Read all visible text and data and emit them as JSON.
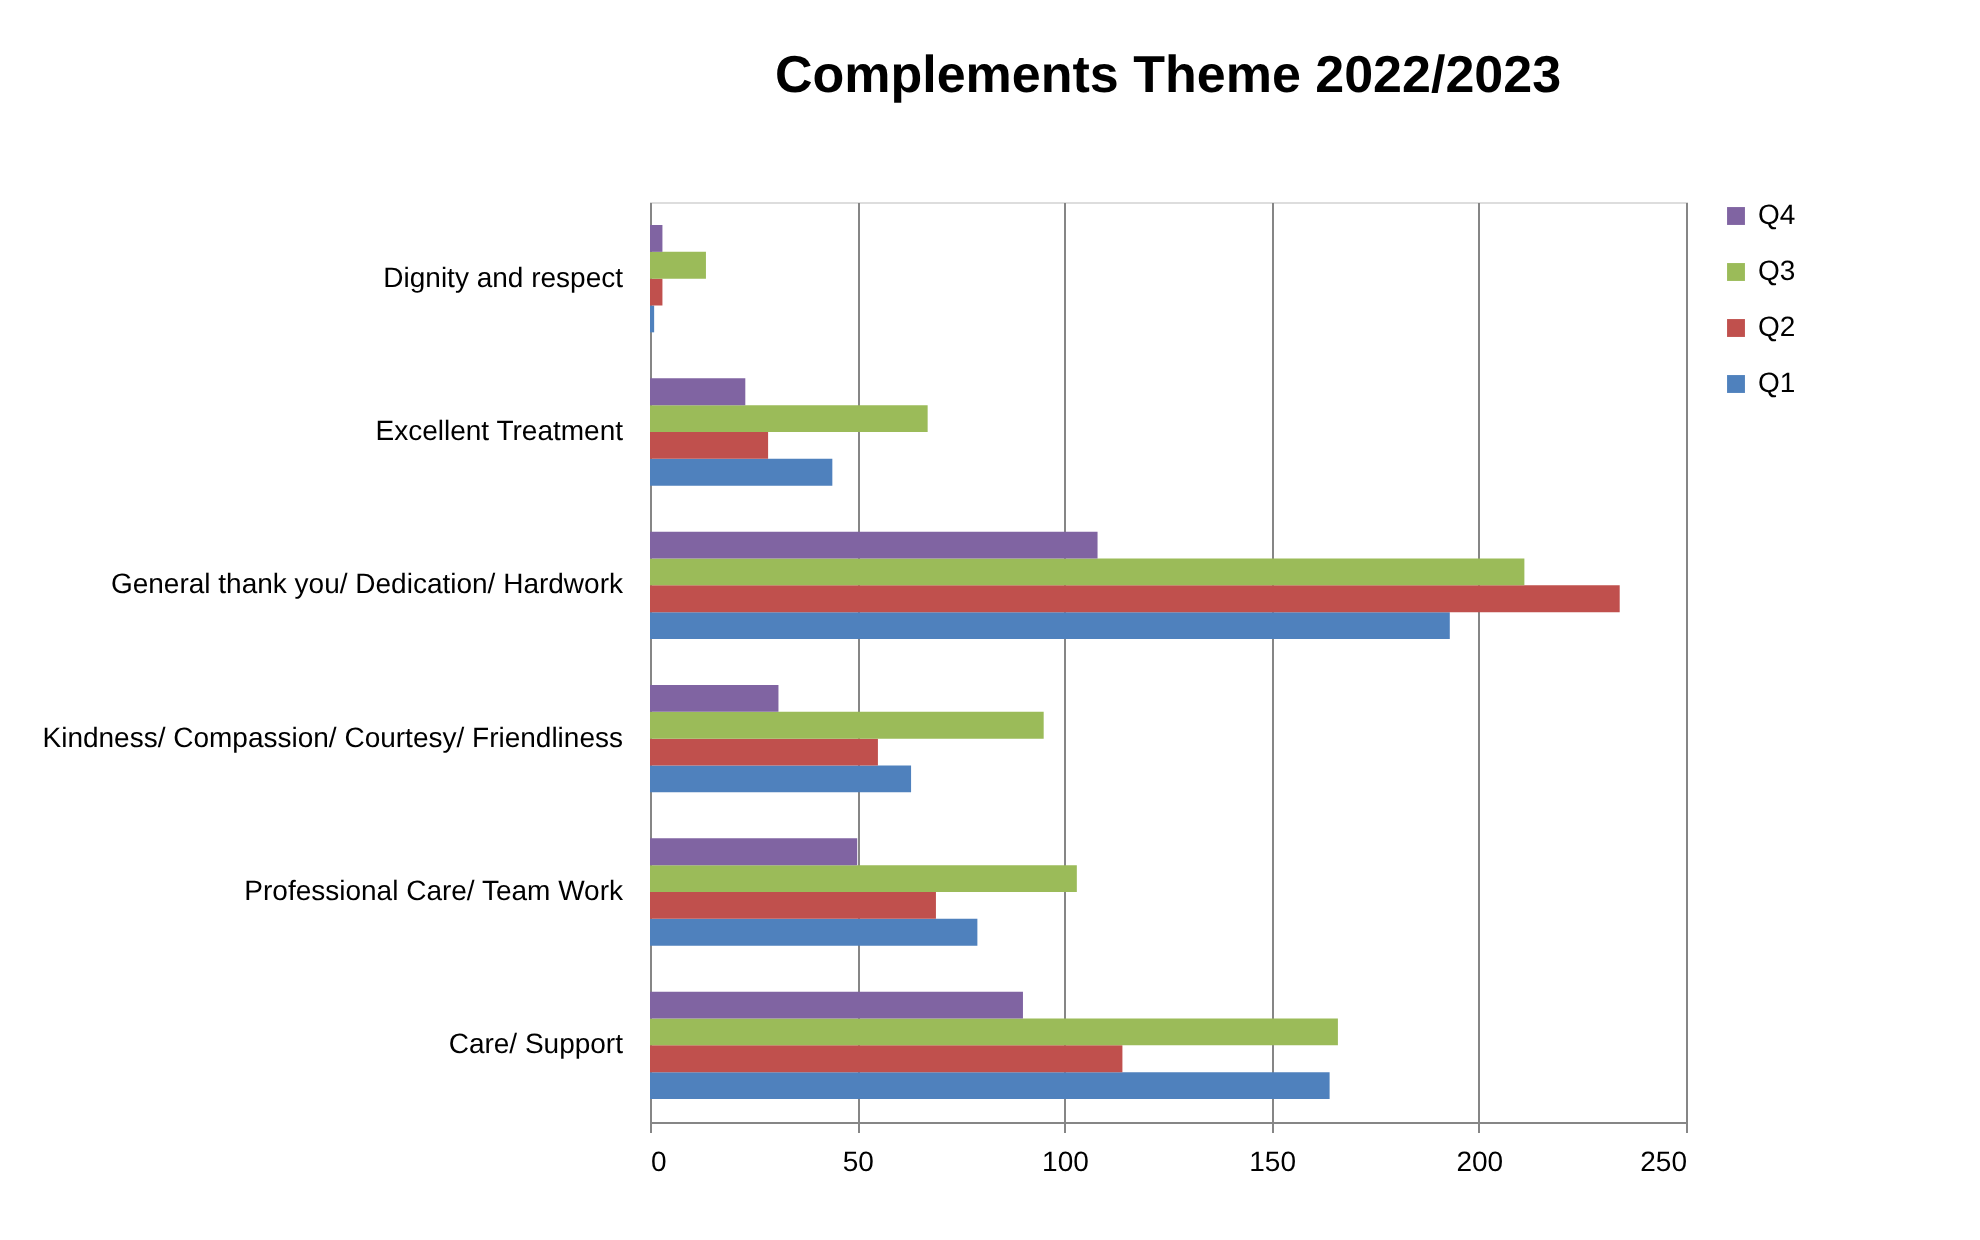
{
  "chart_data": {
    "type": "bar",
    "orientation": "horizontal",
    "title": "Complements Theme 2022/2023",
    "categories": [
      "Dignity and respect",
      "Excellent Treatment",
      "General thank you/ Dedication/ Hardwork",
      "Kindness/ Compassion/ Courtesy/ Friendliness",
      "Professional Care/ Team Work",
      "Care/ Support"
    ],
    "series": [
      {
        "name": "Q1",
        "color": "#4f81bd",
        "values": [
          1,
          44,
          193,
          63,
          79,
          164
        ]
      },
      {
        "name": "Q2",
        "color": "#c0504d",
        "values": [
          3,
          28.5,
          234,
          55,
          69,
          114
        ]
      },
      {
        "name": "Q3",
        "color": "#9bbb59",
        "values": [
          13.5,
          67,
          211,
          95,
          103,
          166
        ]
      },
      {
        "name": "Q4",
        "color": "#8064a2",
        "values": [
          3,
          23,
          108,
          31,
          50,
          90
        ]
      }
    ],
    "xlim": [
      0,
      250
    ],
    "xticks": [
      0,
      50,
      100,
      150,
      200,
      250
    ],
    "grid": "x",
    "legend": "right"
  }
}
